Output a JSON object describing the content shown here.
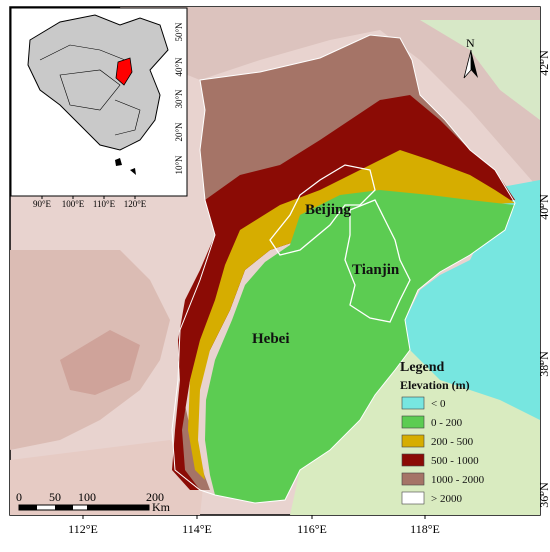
{
  "map": {
    "places": [
      "Beijing",
      "Tianjin",
      "Hebei"
    ],
    "north_arrow_label": "N",
    "x_ticks": [
      "112°E",
      "114°E",
      "116°E",
      "118°E"
    ],
    "y_ticks": [
      "42°N",
      "40°N",
      "38°N",
      "36°N"
    ],
    "scale_bar": {
      "labels": [
        "0",
        "50",
        "100",
        "200"
      ],
      "unit": "Km"
    }
  },
  "legend": {
    "title": "Legend",
    "subtitle": "Elevation (m)",
    "items": [
      {
        "label": "< 0",
        "color": "#77e6e0"
      },
      {
        "label": "0 - 200",
        "color": "#5ccc52"
      },
      {
        "label": "200 - 500",
        "color": "#d6ad00"
      },
      {
        "label": "500 - 1000",
        "color": "#8b0b05"
      },
      {
        "label": "1000 - 2000",
        "color": "#a57467"
      },
      {
        "label": "> 2000",
        "color": "#ffffff"
      }
    ]
  },
  "inset": {
    "x_ticks": [
      "90°E",
      "100°E",
      "110°E",
      "120°E"
    ],
    "y_ticks": [
      "50°N",
      "40°N",
      "30°N",
      "20°N",
      "10°N"
    ]
  }
}
